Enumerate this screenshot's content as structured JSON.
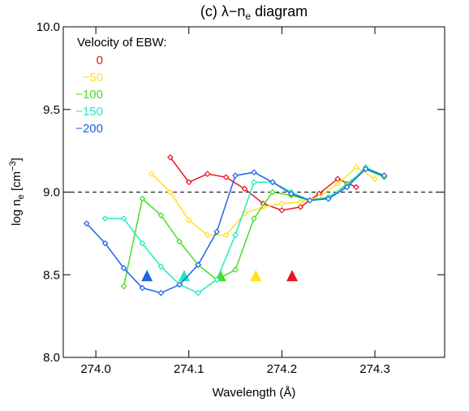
{
  "chart_data": {
    "type": "line",
    "title": [
      "(c) λ−n",
      "e",
      " diagram"
    ],
    "xlabel": "Wavelength (Å)",
    "ylabel": [
      "log n",
      "e",
      " [cm",
      "−3",
      "]"
    ],
    "legend_title": "Velocity of EBW:",
    "xlim": [
      273.965,
      274.375
    ],
    "ylim": [
      8,
      10
    ],
    "xticks": [
      {
        "value": 274,
        "label": "274.0"
      },
      274.1,
      274.2,
      274.3
    ],
    "yticks": [
      {
        "value": 8,
        "label": "8.0"
      },
      8.5,
      {
        "value": 9,
        "label": "9.0"
      },
      9.5,
      {
        "value": 10,
        "label": "10.0"
      }
    ],
    "hline": 9,
    "arrow_y": 8.49,
    "series": [
      {
        "name": "0",
        "color": "#e8141e",
        "arrow_x": 274.211,
        "x": [
          274.08,
          274.1,
          274.12,
          274.14,
          274.16,
          274.18,
          274.2,
          274.22,
          274.24,
          274.26,
          274.28
        ],
        "values": [
          9.21,
          9.06,
          9.11,
          9.09,
          9.02,
          8.93,
          8.89,
          8.91,
          8.99,
          9.08,
          9.03
        ]
      },
      {
        "name": "−50",
        "color": "#ffe020",
        "arrow_x": 274.172,
        "x": [
          274.06,
          274.08,
          274.1,
          274.12,
          274.14,
          274.16,
          274.18,
          274.2,
          274.22,
          274.24,
          274.26,
          274.28,
          274.3
        ],
        "values": [
          9.11,
          9.0,
          8.83,
          8.74,
          8.74,
          8.87,
          8.91,
          8.93,
          8.94,
          8.97,
          9.05,
          9.15,
          9.08
        ]
      },
      {
        "name": "−100",
        "color": "#44dd22",
        "arrow_x": 274.134,
        "x": [
          274.03,
          274.05,
          274.07,
          274.09,
          274.11,
          274.13,
          274.15,
          274.17,
          274.19,
          274.21,
          274.23,
          274.25,
          274.27,
          274.29,
          274.31
        ],
        "values": [
          8.43,
          8.96,
          8.86,
          8.7,
          8.56,
          8.47,
          8.53,
          8.84,
          9.0,
          8.98,
          8.95,
          8.96,
          9.05,
          9.14,
          9.09
        ]
      },
      {
        "name": "−150",
        "color": "#22e8c0",
        "arrow_x": 274.095,
        "x": [
          274.01,
          274.03,
          274.05,
          274.07,
          274.09,
          274.11,
          274.13,
          274.15,
          274.17,
          274.19,
          274.21,
          274.23,
          274.25,
          274.27,
          274.29,
          274.31
        ],
        "values": [
          8.84,
          8.84,
          8.69,
          8.55,
          8.44,
          8.39,
          8.47,
          8.74,
          9.06,
          9.06,
          9.0,
          8.95,
          8.97,
          9.04,
          9.15,
          9.1
        ]
      },
      {
        "name": "−200",
        "color": "#1e64e6",
        "arrow_x": 274.055,
        "x": [
          273.99,
          274.01,
          274.03,
          274.05,
          274.07,
          274.09,
          274.11,
          274.13,
          274.15,
          274.17,
          274.19,
          274.21,
          274.23,
          274.25,
          274.27,
          274.29,
          274.31
        ],
        "values": [
          8.81,
          8.69,
          8.54,
          8.42,
          8.39,
          8.44,
          8.56,
          8.76,
          9.1,
          9.12,
          9.06,
          8.99,
          8.95,
          8.96,
          9.03,
          9.14,
          9.1
        ]
      }
    ]
  }
}
